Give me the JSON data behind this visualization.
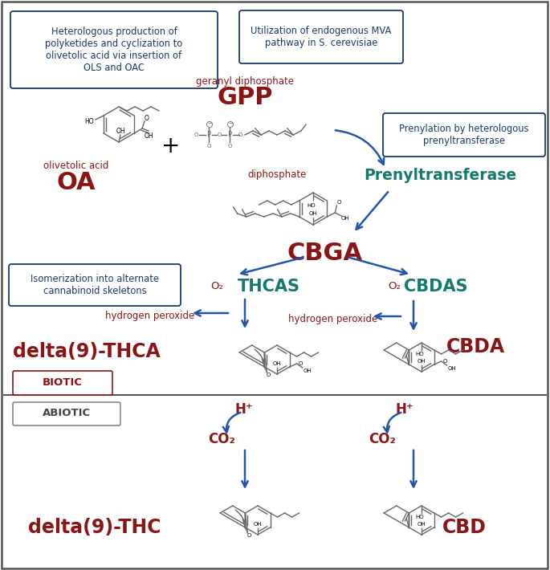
{
  "dark_blue": "#1a3a6b",
  "teal_green": "#147a6e",
  "dark_red": "#8b1515",
  "arrow_color": "#2255aa",
  "struct_color": "#666666",
  "box1_text": "Heterologous production of\npolyketides and cyclization to\nolivetolic acid via insertion of\nOLS and OAC",
  "box2_text": "Utilization of endogenous MVA\npathway in S. cerevisiae",
  "box3_text": "Prenylation by heterologous\nprenyltransferase",
  "box4_text": "Isomerization into alternate\ncannabinoid skeletons",
  "geranyl_diphosphate": "geranyl diphosphate",
  "GPP": "GPP",
  "olivetolic_acid": "olivetolic acid",
  "OA": "OA",
  "diphosphate": "diphosphate",
  "Prenyltransferase": "Prenyltransferase",
  "CBGA": "CBGA",
  "THCAS": "THCAS",
  "CBDAS": "CBDAS",
  "O2": "O₂",
  "hydrogen_peroxide": "hydrogen peroxide",
  "delta9_THCA": "delta(9)-THCA",
  "CBDA": "CBDA",
  "BIOTIC": "BIOTIC",
  "ABIOTIC": "ABIOTIC",
  "H_plus": "H⁺",
  "CO2": "CO₂",
  "delta9_THC": "delta(9)-THC",
  "CBD": "CBD",
  "plus": "+"
}
